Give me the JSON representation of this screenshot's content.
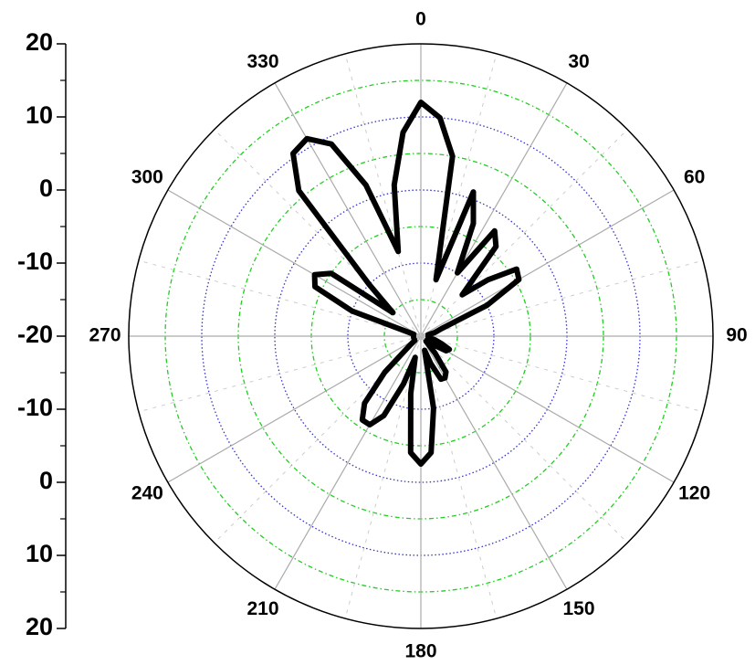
{
  "chart_data": {
    "type": "polar",
    "theta": [
      0,
      5,
      10,
      15,
      20,
      25,
      30,
      35,
      40,
      45,
      50,
      55,
      60,
      65,
      70,
      75,
      80,
      85,
      90,
      95,
      100,
      105,
      110,
      115,
      120,
      125,
      130,
      135,
      140,
      145,
      150,
      155,
      160,
      165,
      170,
      175,
      180,
      185,
      190,
      195,
      200,
      205,
      210,
      215,
      220,
      225,
      230,
      235,
      240,
      245,
      250,
      255,
      260,
      265,
      270,
      275,
      280,
      285,
      290,
      295,
      300,
      305,
      310,
      315,
      320,
      325,
      330,
      335,
      340,
      345,
      350,
      355
    ],
    "values": [
      12,
      10,
      5,
      -12,
      1,
      -3,
      -10,
      -2.4,
      -4,
      -12,
      -8,
      -4,
      -4.5,
      -10,
      -17,
      -18,
      -19,
      -19,
      -19,
      -19,
      -19,
      -18,
      -17,
      -15.7,
      -16,
      -18,
      -19,
      -19,
      -17,
      -14,
      -13.4,
      -13.5,
      -16,
      -18,
      -10,
      -4,
      -2.5,
      -4,
      -12,
      -17,
      -13,
      -8,
      -6,
      -6,
      -8,
      -13,
      -18,
      -19,
      -19,
      -19,
      -19,
      -19,
      -19,
      -19,
      -19,
      -19,
      -19,
      -19,
      -10,
      -4,
      -3.2,
      -5,
      -15,
      -10,
      6,
      10.5,
      11.2,
      9,
      2,
      -8,
      1,
      8
    ],
    "color": "#000000",
    "rlim": [
      -20,
      20
    ],
    "rticks": [
      -20,
      -10,
      0,
      10,
      20
    ],
    "thetaticks": [
      0,
      30,
      60,
      90,
      120,
      150,
      180,
      210,
      240,
      270,
      300,
      330
    ],
    "grid": true
  }
}
